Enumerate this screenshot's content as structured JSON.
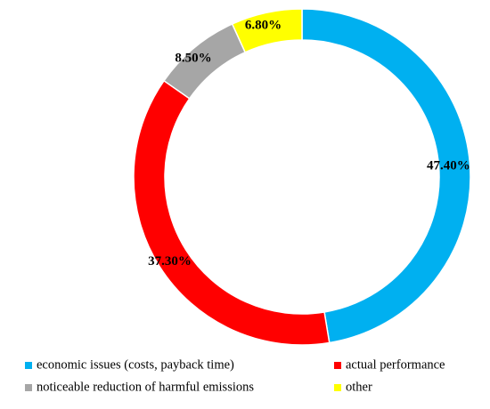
{
  "chart_data": {
    "type": "pie",
    "donut": true,
    "categories": [
      "economic issues (costs, payback time)",
      "actual performance",
      "noticeable reduction of harmful emissions",
      "other"
    ],
    "values": [
      47.4,
      37.3,
      8.5,
      6.8
    ],
    "value_labels": [
      "47.40%",
      "37.30%",
      "8.50%",
      "6.80%"
    ],
    "colors": [
      "#00b0f0",
      "#ff0000",
      "#a6a6a6",
      "#ffff00"
    ],
    "start_angle": "12 o'clock",
    "direction": "clockwise",
    "legend_position": "bottom",
    "title": ""
  }
}
